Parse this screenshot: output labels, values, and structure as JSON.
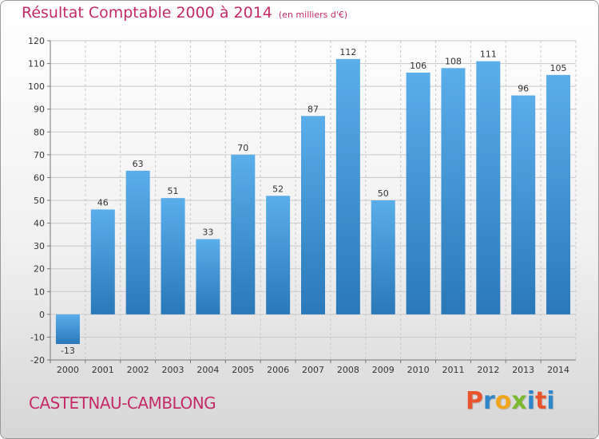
{
  "header": {
    "title": "Résultat Comptable 2000 à 2014",
    "subtitle": "(en milliers d'€)"
  },
  "footer": {
    "commune": "CASTETNAU-CAMBLONG",
    "brand": "Proxiti",
    "brand_colors": [
      "#e8542b",
      "#2f86c9",
      "#f2a51c",
      "#7cb82f",
      "#2f86c9",
      "#e8542b",
      "#2f86c9"
    ]
  },
  "chart_data": {
    "type": "bar",
    "title": "Résultat Comptable 2000 à 2014",
    "subtitle": "(en milliers d'€)",
    "xlabel": "",
    "ylabel": "",
    "categories": [
      "2000",
      "2001",
      "2002",
      "2003",
      "2004",
      "2005",
      "2006",
      "2007",
      "2008",
      "2009",
      "2010",
      "2011",
      "2012",
      "2013",
      "2014"
    ],
    "values": [
      -13,
      46,
      63,
      51,
      33,
      70,
      52,
      87,
      112,
      50,
      106,
      108,
      111,
      96,
      105
    ],
    "ylim": [
      -20,
      120
    ],
    "yticks": [
      -20,
      -10,
      0,
      10,
      20,
      30,
      40,
      50,
      60,
      70,
      80,
      90,
      100,
      110,
      120
    ],
    "grid": true,
    "bar_color_top": "#5aaeea",
    "bar_color_bottom": "#2a78b8"
  }
}
